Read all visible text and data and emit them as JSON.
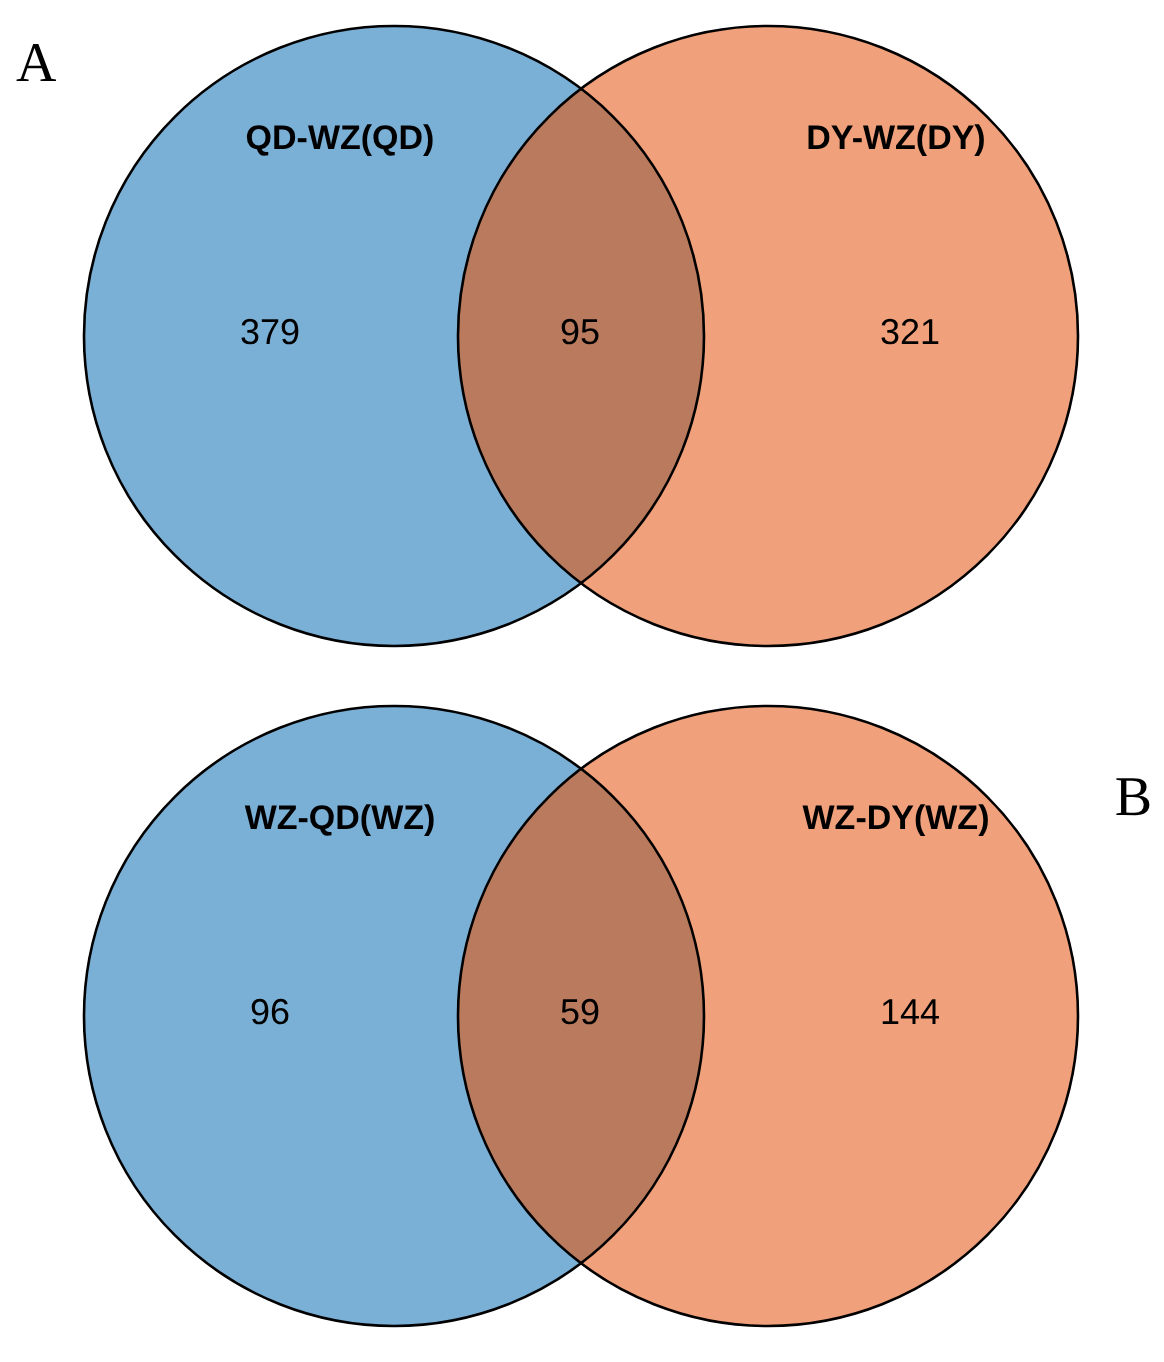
{
  "chart_data": [
    {
      "type": "other",
      "title": "A",
      "categories": [
        "QD-WZ(QD)",
        null,
        "DY-WZ(DY)"
      ],
      "values": [
        379,
        95,
        321
      ],
      "data_labels": true,
      "colors": [
        "#7aafd6",
        "#b97a5e",
        "#f0a07a"
      ]
    },
    {
      "type": "other",
      "title": "B",
      "categories": [
        "WZ-QD(WZ)",
        null,
        "WZ-DY(WZ)"
      ],
      "values": [
        96,
        59,
        144
      ],
      "data_labels": true,
      "colors": [
        "#7aafd6",
        "#b97a5e",
        "#f0a07a"
      ]
    }
  ]
}
